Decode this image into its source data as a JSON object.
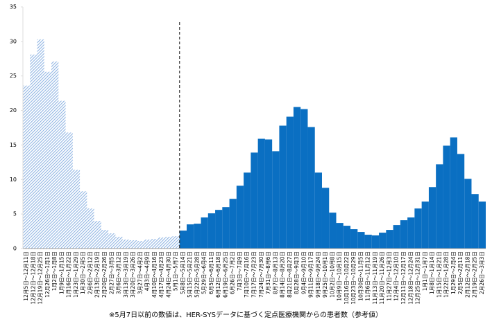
{
  "chart_data": {
    "type": "bar",
    "note": "※5月7日以前の数値は、HER-SYSデータに基づく定点医療機関からの患者数（参考値）",
    "categories": [
      "12月5日～12月11日",
      "12月12日～12月18日",
      "12月19日～12月25日",
      "12月26日～1月1日",
      "1月2日～1月8日",
      "1月9日～1月15日",
      "1月16日～1月22日",
      "1月23日～1月29日",
      "1月30日～2月5日",
      "2月6日～2月12日",
      "2月13日～2月19日",
      "2月20日～2月26日",
      "2月27日～3月5日",
      "3月6日～3月12日",
      "3月13日～3月19日",
      "3月20日～3月26日",
      "3月27日～4月2日",
      "4月3日～4月9日",
      "4月10日～4月16日",
      "4月17日～4月23日",
      "4月24日～4月30日",
      "5月1日～5月7日",
      "5月8日～5月14日",
      "5月15日～5月21日",
      "5月22日～5月28日",
      "5月29日～6月4日",
      "6月5日～6月11日",
      "6月12日～6月18日",
      "6月19日～6月25日",
      "6月26日～7月2日",
      "7月3日～7月9日",
      "7月10日～7月16日",
      "7月17日～7月23日",
      "7月24日～7月30日",
      "7月31日～8月6日",
      "8月7日～8月13日",
      "8月14日～8月20日",
      "8月21日～8月27日",
      "8月28日～9月3日",
      "9月4日～9月10日",
      "9月11日～9月17日",
      "9月18日～9月24日",
      "9月25日～10月1日",
      "10月2日～10月8日",
      "10月9日～10月15日",
      "10月16日～10月22日",
      "10月23日～10月29日",
      "10月30日～11月5日",
      "11月6日～11月12日",
      "11月13日～11月19日",
      "11月20日～11月26日",
      "11月27日～12月3日",
      "12月4日～12月10日",
      "12月11日～12月17日",
      "12月18日～12月24日",
      "12月25日～12月31日",
      "1月1日～1月7日",
      "1月8日～1月14日",
      "1月15日～1月21日",
      "1月22日～1月28日",
      "1月29日～2月4日",
      "2月5日～2月11日",
      "2月12日～2月18日",
      "2月19日～2月25日",
      "2月26日～3月3日"
    ],
    "series": [
      {
        "color": "#8fb4e3",
        "pattern": "hatch",
        "values": [
          23.6,
          28.1,
          30.3,
          25.6,
          27.1,
          21.4,
          16.8,
          11.4,
          8.3,
          5.8,
          4.0,
          2.7,
          2.2,
          1.7,
          1.3,
          1.2,
          1.1,
          1.3,
          1.4,
          1.6,
          1.7,
          1.8,
          null,
          null,
          null,
          null,
          null,
          null,
          null,
          null,
          null,
          null,
          null,
          null,
          null,
          null,
          null,
          null,
          null,
          null,
          null,
          null,
          null,
          null,
          null,
          null,
          null,
          null,
          null,
          null,
          null,
          null,
          null,
          null,
          null,
          null,
          null,
          null,
          null,
          null,
          null,
          null,
          null,
          null,
          null
        ]
      },
      {
        "color": "#0a6fc2",
        "pattern": "solid",
        "values": [
          null,
          null,
          null,
          null,
          null,
          null,
          null,
          null,
          null,
          null,
          null,
          null,
          null,
          null,
          null,
          null,
          null,
          null,
          null,
          null,
          null,
          null,
          2.6,
          3.5,
          3.6,
          4.5,
          5.1,
          5.6,
          6.0,
          7.2,
          9.1,
          11.0,
          13.9,
          15.9,
          15.8,
          14.1,
          17.8,
          19.1,
          20.5,
          20.2,
          17.6,
          11.0,
          8.8,
          5.2,
          3.7,
          3.3,
          2.8,
          2.4,
          2.0,
          1.9,
          2.3,
          2.7,
          3.4,
          4.1,
          4.5,
          5.8,
          6.8,
          8.9,
          12.2,
          14.9,
          16.1,
          13.7,
          10.1,
          7.9,
          6.8
        ]
      }
    ],
    "ylim": [
      0,
      35
    ],
    "yticks": [
      0,
      5,
      10,
      15,
      20,
      25,
      30,
      35
    ],
    "grid": false
  }
}
